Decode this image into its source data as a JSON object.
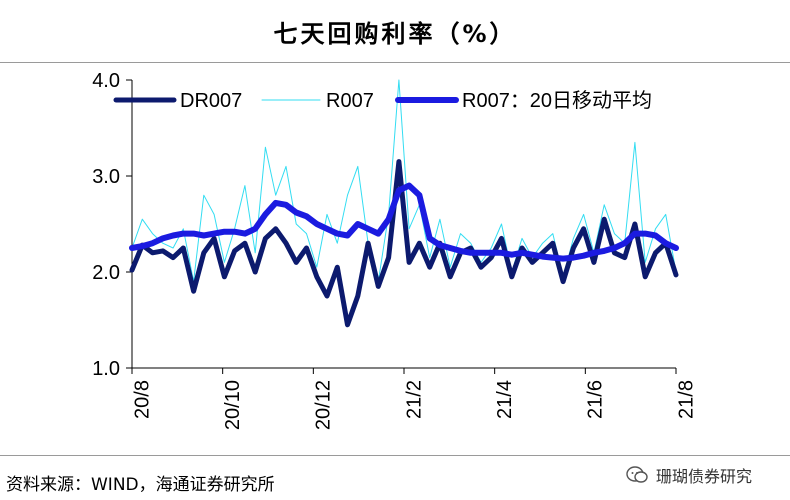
{
  "title": "七天回购利率（%）",
  "footer": {
    "source": "资料来源：WIND，海通证券研究所",
    "watermark": "珊瑚债券研究"
  },
  "chart_data": {
    "type": "line",
    "title": "七天回购利率（%）",
    "xlabel": "",
    "ylabel": "",
    "ylim": [
      1.0,
      4.0
    ],
    "yticks": [
      "1.0",
      "2.0",
      "3.0",
      "4.0"
    ],
    "xticks": [
      "20/8",
      "20/10",
      "20/12",
      "21/2",
      "21/4",
      "21/6",
      "21/8"
    ],
    "grid": false,
    "legend": "top",
    "x": [
      "20/8",
      "20/8",
      "20/8",
      "20/8",
      "20/9",
      "20/9",
      "20/9",
      "20/9",
      "20/9",
      "20/10",
      "20/10",
      "20/10",
      "20/10",
      "20/11",
      "20/11",
      "20/11",
      "20/11",
      "20/11",
      "20/12",
      "20/12",
      "20/12",
      "20/12",
      "21/1",
      "21/1",
      "21/1",
      "21/1",
      "21/1",
      "21/2",
      "21/2",
      "21/2",
      "21/2",
      "21/3",
      "21/3",
      "21/3",
      "21/3",
      "21/3",
      "21/4",
      "21/4",
      "21/4",
      "21/4",
      "21/5",
      "21/5",
      "21/5",
      "21/5",
      "21/5",
      "21/6",
      "21/6",
      "21/6",
      "21/6",
      "21/7",
      "21/7",
      "21/7",
      "21/7",
      "21/8"
    ],
    "series": [
      {
        "name": "DR007",
        "color": "#0c1a6e",
        "values": [
          2.02,
          2.28,
          2.2,
          2.22,
          2.15,
          2.25,
          1.8,
          2.2,
          2.35,
          1.95,
          2.22,
          2.3,
          2.0,
          2.35,
          2.45,
          2.3,
          2.1,
          2.25,
          1.95,
          1.75,
          2.05,
          1.45,
          1.75,
          2.3,
          1.85,
          2.15,
          3.15,
          2.1,
          2.3,
          2.05,
          2.3,
          1.95,
          2.2,
          2.25,
          2.05,
          2.15,
          2.35,
          1.95,
          2.25,
          2.1,
          2.2,
          2.3,
          1.9,
          2.25,
          2.45,
          2.1,
          2.55,
          2.2,
          2.15,
          2.5,
          1.95,
          2.2,
          2.3,
          1.97
        ]
      },
      {
        "name": "R007",
        "color": "#33ddf2",
        "values": [
          2.25,
          2.55,
          2.4,
          2.3,
          2.25,
          2.45,
          1.9,
          2.8,
          2.6,
          2.1,
          2.45,
          2.9,
          2.2,
          3.3,
          2.8,
          3.1,
          2.5,
          2.4,
          2.05,
          2.6,
          2.3,
          2.8,
          3.1,
          2.3,
          1.9,
          2.6,
          4.0,
          2.45,
          2.7,
          2.15,
          2.55,
          2.05,
          2.4,
          2.3,
          2.1,
          2.25,
          2.5,
          2.0,
          2.35,
          2.15,
          2.3,
          2.4,
          1.95,
          2.35,
          2.6,
          2.2,
          2.7,
          2.4,
          2.3,
          3.35,
          2.1,
          2.45,
          2.6,
          2.0
        ]
      },
      {
        "name": "R007：20日移动平均",
        "color": "#1b1be0",
        "values": [
          2.25,
          2.27,
          2.3,
          2.35,
          2.38,
          2.4,
          2.4,
          2.38,
          2.4,
          2.42,
          2.42,
          2.4,
          2.45,
          2.6,
          2.72,
          2.7,
          2.62,
          2.58,
          2.5,
          2.45,
          2.4,
          2.38,
          2.5,
          2.45,
          2.4,
          2.55,
          2.85,
          2.9,
          2.8,
          2.35,
          2.28,
          2.25,
          2.22,
          2.2,
          2.2,
          2.2,
          2.2,
          2.18,
          2.2,
          2.18,
          2.16,
          2.15,
          2.14,
          2.15,
          2.17,
          2.2,
          2.22,
          2.25,
          2.3,
          2.4,
          2.4,
          2.38,
          2.3,
          2.25
        ]
      }
    ]
  }
}
